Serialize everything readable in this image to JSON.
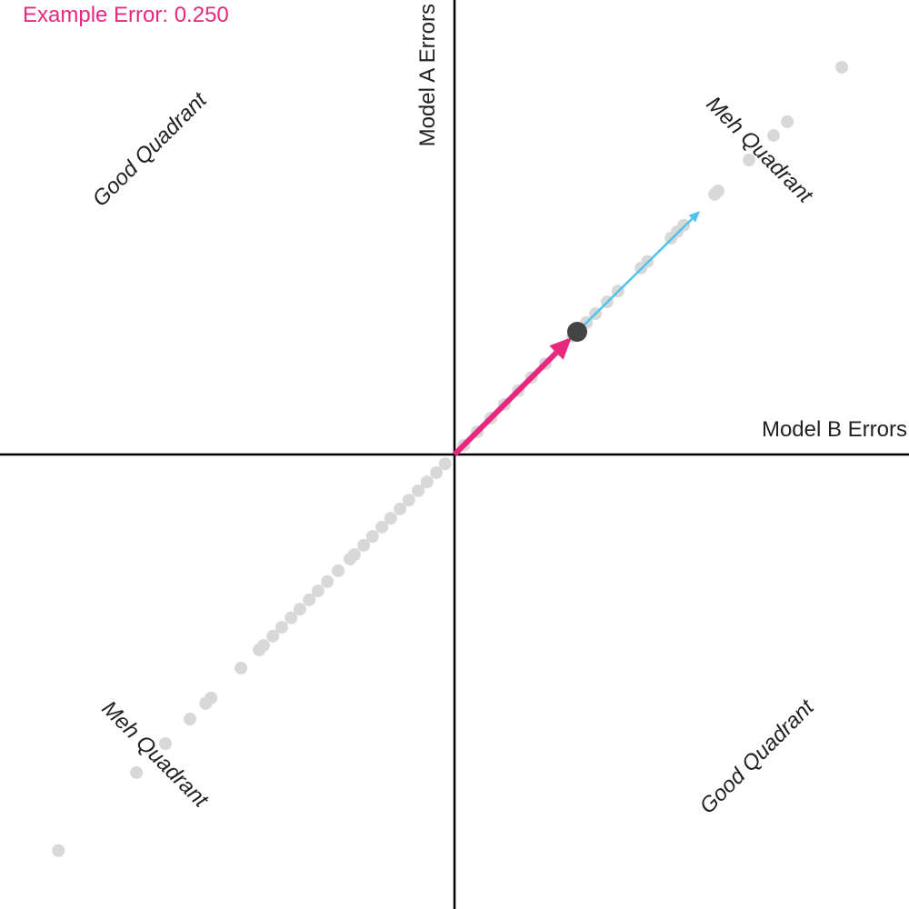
{
  "chart_data": {
    "type": "scatter",
    "title": "Example Error: 0.250",
    "xlabel": "Model B Errors",
    "ylabel": "Model A Errors",
    "quadrant_labels": [
      "Good Quadrant",
      "Meh Quadrant",
      "Meh Quadrant",
      "Good Quadrant"
    ],
    "xlim": [
      -0.926,
      0.926
    ],
    "ylim": [
      -0.926,
      0.926
    ],
    "series": [
      {
        "color": "#d8d8d8",
        "x": [
          0.789,
          0.678,
          0.65,
          0.6,
          0.537,
          0.53,
          0.467,
          0.454,
          0.441,
          0.393,
          0.38,
          0.333,
          0.311,
          0.287,
          0.269,
          0.241,
          0.213,
          0.185,
          0.157,
          0.13,
          0.102,
          0.074,
          0.046,
          0.019,
          -0.019,
          -0.037,
          -0.056,
          -0.074,
          -0.093,
          -0.111,
          -0.13,
          -0.148,
          -0.167,
          -0.185,
          -0.204,
          -0.213,
          -0.237,
          -0.259,
          -0.278,
          -0.296,
          -0.315,
          -0.333,
          -0.352,
          -0.37,
          -0.389,
          -0.398,
          -0.435,
          -0.496,
          -0.507,
          -0.539,
          -0.589,
          -0.648,
          -0.807
        ],
        "values": [
          0.789,
          0.678,
          0.65,
          0.6,
          0.537,
          0.53,
          0.467,
          0.454,
          0.441,
          0.393,
          0.38,
          0.333,
          0.311,
          0.287,
          0.269,
          0.241,
          0.213,
          0.185,
          0.157,
          0.13,
          0.102,
          0.074,
          0.046,
          0.019,
          -0.019,
          -0.037,
          -0.056,
          -0.074,
          -0.093,
          -0.111,
          -0.13,
          -0.148,
          -0.167,
          -0.185,
          -0.204,
          -0.213,
          -0.237,
          -0.259,
          -0.278,
          -0.296,
          -0.315,
          -0.333,
          -0.352,
          -0.37,
          -0.389,
          -0.398,
          -0.435,
          -0.496,
          -0.507,
          -0.539,
          -0.589,
          -0.648,
          -0.807
        ]
      }
    ],
    "example_point": {
      "x": 0.25,
      "y": 0.25,
      "color": "#444444"
    },
    "error_arrow": {
      "color": "#e8287f"
    },
    "gradient_arrow": {
      "x": 0.5,
      "y": 0.496,
      "color": "#4fc3f0"
    }
  }
}
